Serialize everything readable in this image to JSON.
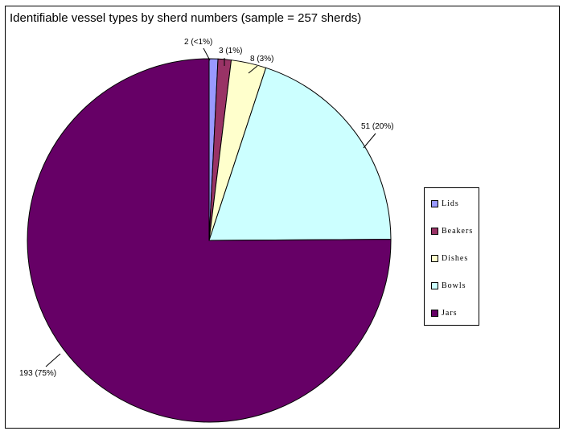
{
  "chart_data": {
    "type": "pie",
    "title": "Identifiable vessel types by sherd numbers (sample = 257 sherds)",
    "slices": [
      {
        "name": "Lids",
        "value": 2,
        "label": "2 (<1%)",
        "color": "#9999ff"
      },
      {
        "name": "Beakers",
        "value": 3,
        "label": "3 (1%)",
        "color": "#993366"
      },
      {
        "name": "Dishes",
        "value": 8,
        "label": "8 (3%)",
        "color": "#ffffcc"
      },
      {
        "name": "Bowls",
        "value": 51,
        "label": "51 (20%)",
        "color": "#ccffff"
      },
      {
        "name": "Jars",
        "value": 193,
        "label": "193 (75%)",
        "color": "#660066"
      }
    ],
    "legend_position": "right"
  }
}
